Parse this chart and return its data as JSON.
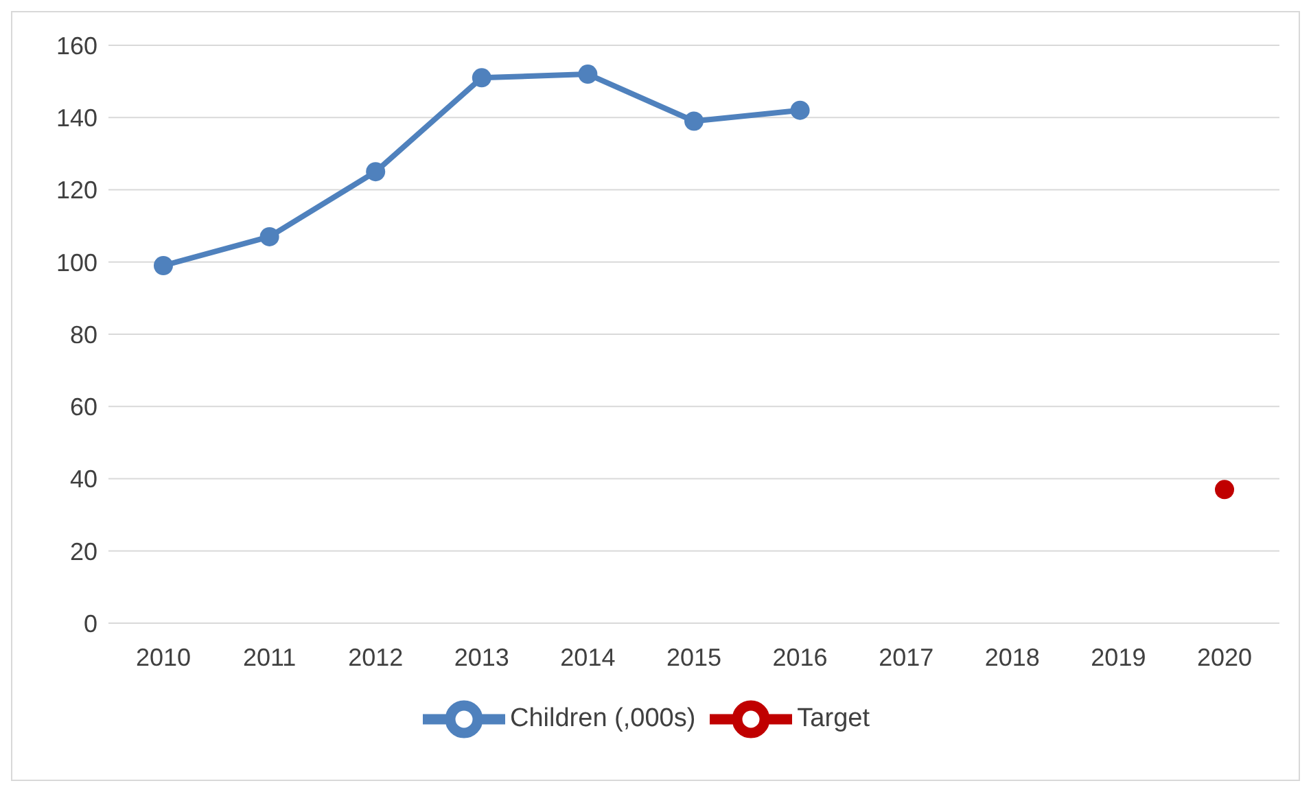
{
  "chart_data": {
    "type": "line",
    "categories": [
      "2010",
      "2011",
      "2012",
      "2013",
      "2014",
      "2015",
      "2016",
      "2017",
      "2018",
      "2019",
      "2020"
    ],
    "series": [
      {
        "name": "Children (,000s)",
        "color": "#4f81bd",
        "values": [
          99,
          107,
          125,
          151,
          152,
          139,
          142,
          null,
          null,
          null,
          null
        ]
      },
      {
        "name": "Target",
        "color": "#c00000",
        "values": [
          null,
          null,
          null,
          null,
          null,
          null,
          null,
          null,
          null,
          null,
          37
        ]
      }
    ],
    "ylim": [
      0,
      160
    ],
    "yticks": [
      0,
      20,
      40,
      60,
      80,
      100,
      120,
      140,
      160
    ],
    "grid": "y",
    "legend": "bottom",
    "marker": "circle",
    "line_style": "solid"
  }
}
